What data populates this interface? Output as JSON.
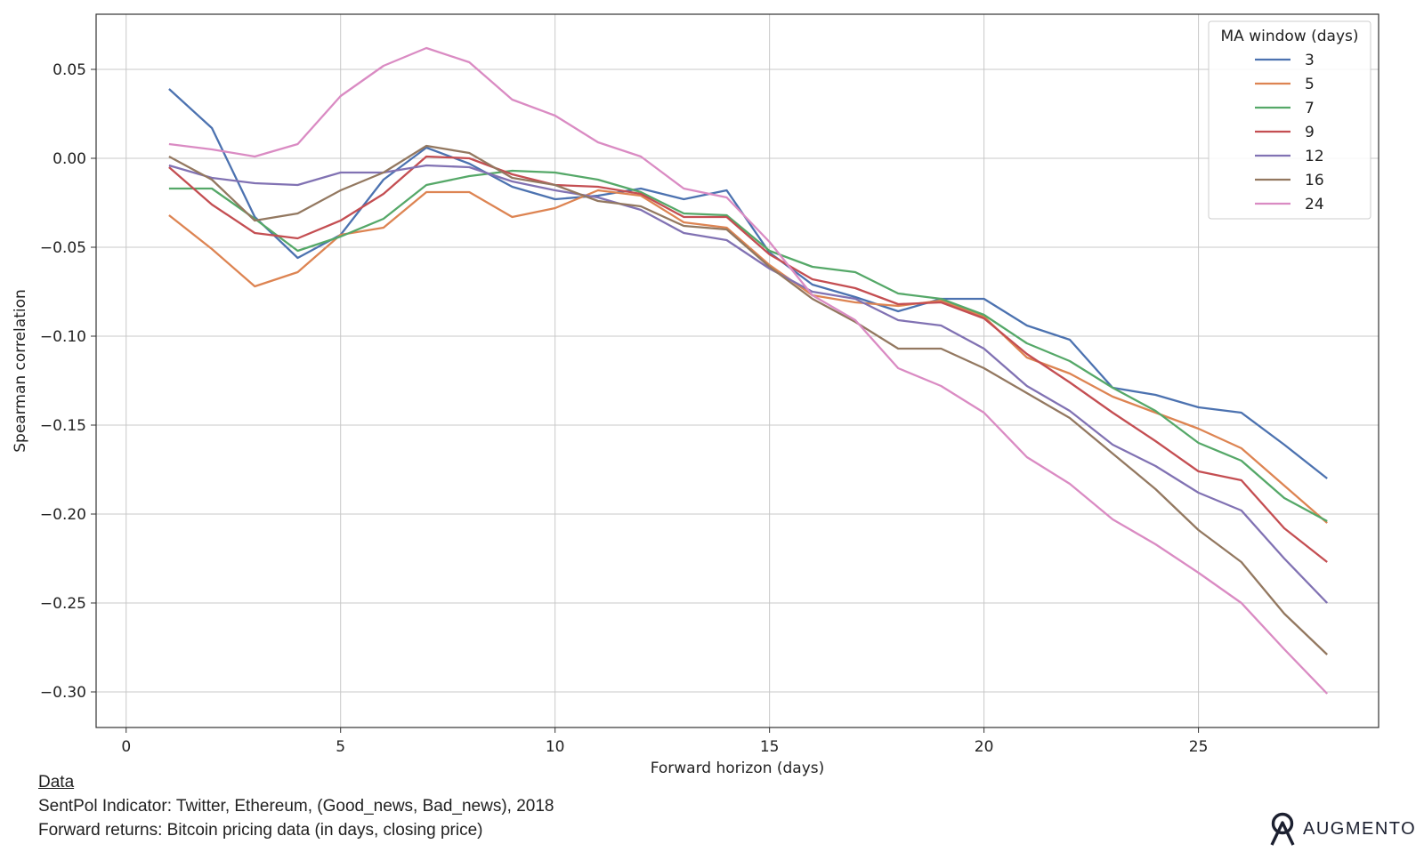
{
  "chart_data": {
    "type": "line",
    "xlabel": "Forward horizon (days)",
    "ylabel": "Spearman correlation",
    "xlim": [
      -0.7,
      29.2
    ],
    "ylim": [
      -0.32,
      0.081
    ],
    "x_ticks": [
      0,
      5,
      10,
      15,
      20,
      25
    ],
    "y_ticks": [
      0.05,
      0.0,
      -0.05,
      -0.1,
      -0.15,
      -0.2,
      -0.25,
      -0.3
    ],
    "y_tick_labels": [
      "0.05",
      "0.00",
      "−0.05",
      "−0.10",
      "−0.15",
      "−0.20",
      "−0.25",
      "−0.30"
    ],
    "grid": true,
    "legend": {
      "title": "MA window (days)",
      "placement": "top-right"
    },
    "x": [
      1,
      2,
      3,
      4,
      5,
      6,
      7,
      8,
      9,
      10,
      11,
      12,
      13,
      14,
      15,
      16,
      17,
      18,
      19,
      20,
      21,
      22,
      23,
      24,
      25,
      26,
      27,
      28
    ],
    "series": [
      {
        "name": "3",
        "color": "#4c72b0",
        "values": [
          0.039,
          0.017,
          -0.033,
          -0.056,
          -0.043,
          -0.012,
          0.006,
          -0.003,
          -0.016,
          -0.023,
          -0.021,
          -0.017,
          -0.023,
          -0.018,
          -0.053,
          -0.071,
          -0.078,
          -0.086,
          -0.079,
          -0.079,
          -0.094,
          -0.102,
          -0.129,
          -0.133,
          -0.14,
          -0.143,
          -0.161,
          -0.18
        ]
      },
      {
        "name": "5",
        "color": "#dd8452",
        "values": [
          -0.032,
          -0.051,
          -0.072,
          -0.064,
          -0.043,
          -0.039,
          -0.019,
          -0.019,
          -0.033,
          -0.028,
          -0.018,
          -0.021,
          -0.036,
          -0.039,
          -0.06,
          -0.077,
          -0.081,
          -0.083,
          -0.08,
          -0.089,
          -0.112,
          -0.121,
          -0.134,
          -0.143,
          -0.152,
          -0.163,
          -0.184,
          -0.205
        ]
      },
      {
        "name": "7",
        "color": "#55a868",
        "values": [
          -0.017,
          -0.017,
          -0.034,
          -0.052,
          -0.044,
          -0.034,
          -0.015,
          -0.01,
          -0.007,
          -0.008,
          -0.012,
          -0.019,
          -0.031,
          -0.032,
          -0.052,
          -0.061,
          -0.064,
          -0.076,
          -0.079,
          -0.088,
          -0.104,
          -0.114,
          -0.129,
          -0.142,
          -0.16,
          -0.17,
          -0.191,
          -0.204
        ]
      },
      {
        "name": "9",
        "color": "#c44e52",
        "values": [
          -0.005,
          -0.026,
          -0.042,
          -0.045,
          -0.035,
          -0.02,
          0.001,
          0.0,
          -0.009,
          -0.015,
          -0.016,
          -0.02,
          -0.033,
          -0.033,
          -0.054,
          -0.068,
          -0.073,
          -0.082,
          -0.081,
          -0.09,
          -0.11,
          -0.126,
          -0.143,
          -0.159,
          -0.176,
          -0.181,
          -0.208,
          -0.227
        ]
      },
      {
        "name": "12",
        "color": "#8172b3",
        "values": [
          -0.004,
          -0.011,
          -0.014,
          -0.015,
          -0.008,
          -0.008,
          -0.004,
          -0.005,
          -0.013,
          -0.018,
          -0.022,
          -0.029,
          -0.042,
          -0.046,
          -0.062,
          -0.075,
          -0.079,
          -0.091,
          -0.094,
          -0.107,
          -0.128,
          -0.142,
          -0.161,
          -0.173,
          -0.188,
          -0.198,
          -0.225,
          -0.25
        ]
      },
      {
        "name": "16",
        "color": "#937860",
        "values": [
          0.001,
          -0.012,
          -0.035,
          -0.031,
          -0.018,
          -0.008,
          0.007,
          0.003,
          -0.011,
          -0.015,
          -0.024,
          -0.027,
          -0.038,
          -0.04,
          -0.061,
          -0.079,
          -0.092,
          -0.107,
          -0.107,
          -0.118,
          -0.132,
          -0.146,
          -0.166,
          -0.186,
          -0.209,
          -0.227,
          -0.256,
          -0.279
        ]
      },
      {
        "name": "24",
        "color": "#da8bc3",
        "values": [
          0.008,
          0.005,
          0.001,
          0.008,
          0.035,
          0.052,
          0.062,
          0.054,
          0.033,
          0.024,
          0.009,
          0.001,
          -0.017,
          -0.022,
          -0.047,
          -0.077,
          -0.091,
          -0.118,
          -0.128,
          -0.143,
          -0.168,
          -0.183,
          -0.203,
          -0.217,
          -0.233,
          -0.25,
          -0.276,
          -0.301
        ]
      }
    ]
  },
  "footer": {
    "heading": "Data",
    "line1": "SentPol Indicator: Twitter, Ethereum, (Good_news, Bad_news), 2018",
    "line2": "Forward returns: Bitcoin pricing data (in days, closing price)"
  },
  "brand": {
    "name": "AUGMENTO",
    "logo_icon": "augmento-logo-icon"
  }
}
